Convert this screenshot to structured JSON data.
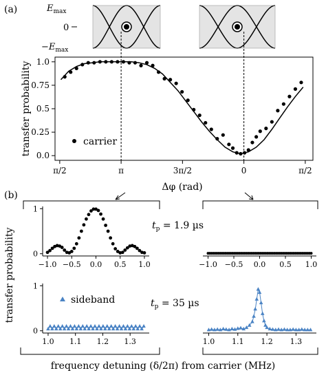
{
  "figure": {
    "panel_a_label": "(a)",
    "panel_b_label": "(b)",
    "energy_labels": {
      "emax": "E",
      "emax_sub": "max",
      "zero": "0",
      "neg_emax": "−E",
      "neg_emax_sub": "max"
    },
    "t1_label": "t",
    "t1_sub": "p",
    "t1_value": " = 1.9 µs",
    "t2_label": "t",
    "t2_sub": "p",
    "t2_value": " = 35 µs",
    "xlabel_b": "frequency detuning (δ/2π) from carrier (MHz)"
  },
  "chart_data": [
    {
      "type": "scatter",
      "panel": "a",
      "ylabel": "transfer probability",
      "xlabel": "Δφ (rad)",
      "xticklabels": [
        "π/2",
        "π",
        "3π/2",
        "0",
        "π/2"
      ],
      "xticks": [
        1.5708,
        3.1416,
        4.7124,
        6.2832,
        7.854
      ],
      "yticks": [
        0.0,
        0.25,
        0.5,
        0.75,
        1.0
      ],
      "yticklabels": [
        "0.0",
        "0.25",
        "0.5",
        "0.75",
        "1.0"
      ],
      "xlim": [
        1.45,
        8.05
      ],
      "ylim": [
        -0.05,
        1.05
      ],
      "legend": "carrier",
      "legend_position": "lower-left",
      "series": [
        {
          "name": "carrier",
          "x": [
            1.7,
            1.85,
            2.0,
            2.15,
            2.3,
            2.45,
            2.6,
            2.75,
            2.9,
            3.05,
            3.2,
            3.35,
            3.5,
            3.65,
            3.8,
            3.95,
            4.1,
            4.25,
            4.4,
            4.55,
            4.7,
            4.85,
            5.0,
            5.15,
            5.3,
            5.45,
            5.6,
            5.75,
            5.9,
            6.0,
            6.1,
            6.2,
            6.3,
            6.4,
            6.5,
            6.6,
            6.7,
            6.85,
            7.0,
            7.15,
            7.3,
            7.45,
            7.6,
            7.75
          ],
          "y": [
            0.84,
            0.89,
            0.93,
            0.97,
            0.99,
            0.99,
            1.0,
            1.0,
            1.0,
            1.0,
            1.0,
            0.99,
            0.99,
            0.96,
            0.99,
            0.96,
            0.89,
            0.82,
            0.81,
            0.77,
            0.68,
            0.59,
            0.49,
            0.43,
            0.35,
            0.28,
            0.18,
            0.22,
            0.12,
            0.08,
            0.03,
            0.02,
            0.03,
            0.06,
            0.14,
            0.2,
            0.26,
            0.29,
            0.36,
            0.48,
            0.55,
            0.63,
            0.71,
            0.78
          ]
        },
        {
          "name": "fit",
          "x": [
            1.6,
            1.8,
            2.0,
            2.2,
            2.4,
            2.6,
            2.8,
            3.0,
            3.2,
            3.4,
            3.6,
            3.8,
            4.0,
            4.2,
            4.4,
            4.6,
            4.8,
            5.0,
            5.2,
            5.4,
            5.6,
            5.8,
            6.0,
            6.2,
            6.4,
            6.6,
            6.8,
            7.0,
            7.2,
            7.4,
            7.6,
            7.8
          ],
          "y": [
            0.81,
            0.9,
            0.95,
            0.98,
            0.99,
            1.0,
            1.0,
            1.0,
            1.0,
            1.0,
            0.99,
            0.97,
            0.93,
            0.87,
            0.78,
            0.69,
            0.58,
            0.47,
            0.36,
            0.26,
            0.17,
            0.09,
            0.04,
            0.02,
            0.04,
            0.09,
            0.17,
            0.28,
            0.4,
            0.52,
            0.63,
            0.73
          ]
        }
      ]
    },
    {
      "type": "scatter",
      "panel": "b-top-left",
      "ylabel": "transfer probability",
      "xticklabels": [
        "−1.0",
        "−0.5",
        "0.0",
        "0.5",
        "1.0"
      ],
      "xticks": [
        -1.0,
        -0.5,
        0.0,
        0.5,
        1.0
      ],
      "yticklabels": [
        "0",
        "1"
      ],
      "yticks": [
        0,
        1
      ],
      "xlim": [
        -1.1,
        1.1
      ],
      "ylim": [
        -0.05,
        1.05
      ],
      "series": [
        {
          "name": "carrier",
          "x": [
            -1.0,
            -0.95,
            -0.9,
            -0.85,
            -0.8,
            -0.75,
            -0.7,
            -0.65,
            -0.6,
            -0.55,
            -0.5,
            -0.45,
            -0.4,
            -0.35,
            -0.3,
            -0.25,
            -0.2,
            -0.15,
            -0.1,
            -0.05,
            0.0,
            0.05,
            0.1,
            0.15,
            0.2,
            0.25,
            0.3,
            0.35,
            0.4,
            0.45,
            0.5,
            0.55,
            0.6,
            0.65,
            0.7,
            0.75,
            0.8,
            0.85,
            0.9,
            0.95,
            1.0
          ],
          "y": [
            0.03,
            0.07,
            0.12,
            0.16,
            0.18,
            0.17,
            0.14,
            0.08,
            0.03,
            0.02,
            0.05,
            0.12,
            0.22,
            0.35,
            0.5,
            0.64,
            0.77,
            0.87,
            0.95,
            0.99,
            0.99,
            0.96,
            0.88,
            0.77,
            0.63,
            0.5,
            0.35,
            0.22,
            0.11,
            0.05,
            0.02,
            0.03,
            0.08,
            0.13,
            0.17,
            0.18,
            0.16,
            0.12,
            0.07,
            0.03,
            0.02
          ]
        }
      ]
    },
    {
      "type": "scatter",
      "panel": "b-top-right",
      "xticklabels": [
        "−1.0",
        "−0.5",
        "0.0",
        "0.5",
        "1.0"
      ],
      "xticks": [
        -1.0,
        -0.5,
        0.0,
        0.5,
        1.0
      ],
      "xlim": [
        -1.1,
        1.1
      ],
      "ylim": [
        -0.05,
        1.05
      ],
      "series": [
        {
          "name": "carrier",
          "y_constant": 0.01,
          "x_range": [
            -1.0,
            1.0
          ],
          "n_points": 60
        }
      ]
    },
    {
      "type": "line",
      "panel": "b-bottom-left",
      "legend": "sideband",
      "xticklabels": [
        "1.0",
        "1.1",
        "1.2",
        "1.3"
      ],
      "xticks": [
        1.0,
        1.1,
        1.2,
        1.3
      ],
      "yticklabels": [
        "0",
        "1"
      ],
      "yticks": [
        0,
        1
      ],
      "xlim": [
        0.98,
        1.37
      ],
      "ylim": [
        -0.05,
        1.05
      ],
      "series": [
        {
          "name": "sideband",
          "x_range": [
            1.0,
            1.35
          ],
          "n_points": 48,
          "baseline": 0.04,
          "ripple": 0.06
        }
      ]
    },
    {
      "type": "line",
      "panel": "b-bottom-right",
      "xticklabels": [
        "1.0",
        "1.1",
        "1.2",
        "1.3"
      ],
      "xticks": [
        1.0,
        1.1,
        1.2,
        1.3
      ],
      "xlim": [
        0.98,
        1.37
      ],
      "ylim": [
        -0.05,
        1.05
      ],
      "series": [
        {
          "name": "sideband",
          "x": [
            1.0,
            1.01,
            1.02,
            1.03,
            1.04,
            1.05,
            1.06,
            1.07,
            1.08,
            1.09,
            1.1,
            1.11,
            1.12,
            1.13,
            1.14,
            1.15,
            1.155,
            1.16,
            1.165,
            1.17,
            1.175,
            1.18,
            1.185,
            1.19,
            1.195,
            1.2,
            1.21,
            1.22,
            1.23,
            1.24,
            1.25,
            1.26,
            1.27,
            1.28,
            1.29,
            1.3,
            1.31,
            1.32,
            1.33,
            1.34,
            1.35
          ],
          "y": [
            0.02,
            0.03,
            0.02,
            0.03,
            0.02,
            0.04,
            0.03,
            0.02,
            0.04,
            0.03,
            0.05,
            0.06,
            0.04,
            0.07,
            0.12,
            0.2,
            0.32,
            0.48,
            0.7,
            0.92,
            0.85,
            0.62,
            0.38,
            0.22,
            0.12,
            0.07,
            0.04,
            0.03,
            0.02,
            0.03,
            0.02,
            0.03,
            0.02,
            0.02,
            0.03,
            0.02,
            0.02,
            0.03,
            0.02,
            0.02,
            0.02
          ]
        }
      ]
    }
  ]
}
